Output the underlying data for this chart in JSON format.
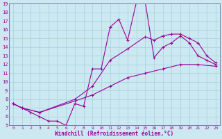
{
  "xlabel": "Windchill (Refroidissement éolien,°C)",
  "bg_color": "#cce8f0",
  "grid_color": "#aad4e0",
  "line_color": "#990099",
  "spine_color": "#7777aa",
  "xlim": [
    -0.5,
    23.5
  ],
  "ylim": [
    5,
    19
  ],
  "yticks": [
    5,
    6,
    7,
    8,
    9,
    10,
    11,
    12,
    13,
    14,
    15,
    16,
    17,
    18,
    19
  ],
  "xticks": [
    0,
    1,
    2,
    3,
    4,
    5,
    6,
    7,
    8,
    9,
    10,
    11,
    12,
    13,
    14,
    15,
    16,
    17,
    18,
    19,
    20,
    21,
    22,
    23
  ],
  "series": [
    {
      "x": [
        0,
        1,
        2,
        3,
        4,
        5,
        6,
        7,
        8,
        9,
        10,
        11,
        12,
        13,
        14,
        15,
        16,
        17,
        18,
        19,
        20,
        21,
        22,
        23
      ],
      "y": [
        7.5,
        7.0,
        6.5,
        6.0,
        5.5,
        5.5,
        5.0,
        7.5,
        7.2,
        11.5,
        11.5,
        16.3,
        17.2,
        14.8,
        19.2,
        19.2,
        12.8,
        14.0,
        14.5,
        15.3,
        14.5,
        13.0,
        12.5,
        12.0
      ]
    },
    {
      "x": [
        0,
        1,
        3,
        7,
        9,
        11,
        13,
        15,
        16,
        17,
        18,
        19,
        20,
        21,
        22,
        23
      ],
      "y": [
        7.5,
        7.0,
        6.5,
        8.0,
        9.5,
        12.5,
        13.8,
        15.2,
        14.8,
        15.3,
        15.5,
        15.5,
        15.0,
        14.5,
        13.0,
        12.2
      ]
    },
    {
      "x": [
        0,
        1,
        3,
        7,
        9,
        11,
        13,
        15,
        17,
        19,
        21,
        23
      ],
      "y": [
        7.5,
        7.0,
        6.5,
        7.8,
        8.5,
        9.5,
        10.5,
        11.0,
        11.5,
        12.0,
        12.0,
        11.8
      ]
    }
  ]
}
